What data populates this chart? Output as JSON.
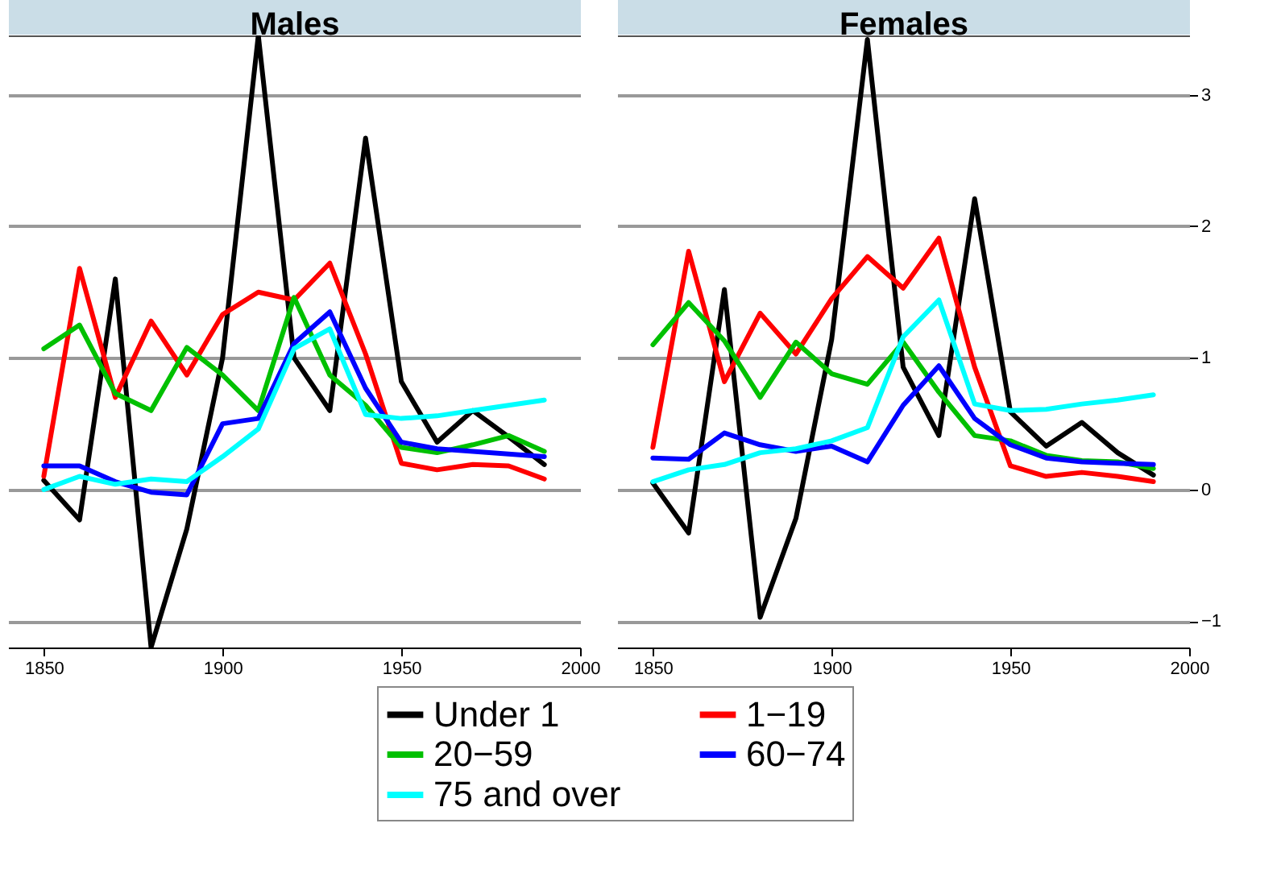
{
  "chart_data": [
    {
      "type": "line",
      "title": "Males",
      "x": [
        1850,
        1860,
        1870,
        1880,
        1890,
        1900,
        1910,
        1920,
        1930,
        1940,
        1950,
        1960,
        1970,
        1980,
        1990
      ],
      "xlim": [
        1840,
        2000
      ],
      "xticks": [
        1850,
        1900,
        1950,
        2000
      ],
      "ylim": [
        -1.2,
        3.45
      ],
      "yticks": [
        -1,
        0,
        1,
        2,
        3
      ],
      "grid": "y",
      "legend": "bottom",
      "tick_labels": "x",
      "line_style": "solid",
      "series": [
        {
          "name": "Under 1",
          "color": "#000000",
          "values": [
            0.07,
            -0.23,
            1.6,
            -1.2,
            -0.3,
            1.0,
            3.45,
            1.0,
            0.6,
            2.67,
            0.82,
            0.36,
            0.6,
            0.4,
            0.19
          ]
        },
        {
          "name": "1−19",
          "color": "#ff0000",
          "values": [
            0.1,
            1.68,
            0.7,
            1.28,
            0.87,
            1.33,
            1.5,
            1.44,
            1.72,
            1.03,
            0.2,
            0.15,
            0.19,
            0.18,
            0.08
          ]
        },
        {
          "name": "20−59",
          "color": "#00c000",
          "values": [
            1.07,
            1.25,
            0.73,
            0.6,
            1.08,
            0.87,
            0.6,
            1.46,
            0.87,
            0.64,
            0.32,
            0.28,
            0.34,
            0.41,
            0.29
          ]
        },
        {
          "name": "60−74",
          "color": "#0000ff",
          "values": [
            0.18,
            0.18,
            0.06,
            -0.02,
            -0.04,
            0.5,
            0.54,
            1.11,
            1.35,
            0.77,
            0.36,
            0.31,
            0.29,
            0.27,
            0.25
          ]
        },
        {
          "name": "75 and over",
          "color": "#00ffff",
          "values": [
            0,
            0.1,
            0.04,
            0.08,
            0.06,
            0.25,
            0.46,
            1.07,
            1.22,
            0.57,
            0.54,
            0.56,
            0.6,
            0.64,
            0.68
          ]
        }
      ]
    },
    {
      "type": "line",
      "title": "Females",
      "x": [
        1850,
        1860,
        1870,
        1880,
        1890,
        1900,
        1910,
        1920,
        1930,
        1940,
        1950,
        1960,
        1970,
        1980,
        1990
      ],
      "xlim": [
        1840,
        2000
      ],
      "xticks": [
        1850,
        1900,
        1950,
        2000
      ],
      "ylim": [
        -1.2,
        3.45
      ],
      "yticks": [
        -1,
        0,
        1,
        2,
        3
      ],
      "grid": "y",
      "legend": "bottom",
      "line_style": "solid",
      "series": [
        {
          "name": "Under 1",
          "color": "#000000",
          "values": [
            0.05,
            -0.33,
            1.52,
            -0.97,
            -0.22,
            1.14,
            3.42,
            0.93,
            0.41,
            2.21,
            0.59,
            0.33,
            0.51,
            0.28,
            0.11
          ]
        },
        {
          "name": "1−19",
          "color": "#ff0000",
          "values": [
            0.32,
            1.81,
            0.82,
            1.34,
            1.03,
            1.45,
            1.77,
            1.53,
            1.91,
            0.93,
            0.18,
            0.1,
            0.13,
            0.1,
            0.06
          ]
        },
        {
          "name": "20−59",
          "color": "#00c000",
          "values": [
            1.1,
            1.42,
            1.13,
            0.7,
            1.12,
            0.88,
            0.8,
            1.12,
            0.74,
            0.41,
            0.37,
            0.26,
            0.22,
            0.21,
            0.16
          ]
        },
        {
          "name": "60−74",
          "color": "#0000ff",
          "values": [
            0.24,
            0.23,
            0.43,
            0.34,
            0.29,
            0.33,
            0.21,
            0.64,
            0.94,
            0.54,
            0.34,
            0.24,
            0.21,
            0.2,
            0.19
          ]
        },
        {
          "name": "75 and over",
          "color": "#00ffff",
          "values": [
            0.06,
            0.15,
            0.19,
            0.28,
            0.31,
            0.37,
            0.47,
            1.16,
            1.44,
            0.65,
            0.6,
            0.61,
            0.65,
            0.68,
            0.72
          ]
        }
      ]
    }
  ]
}
